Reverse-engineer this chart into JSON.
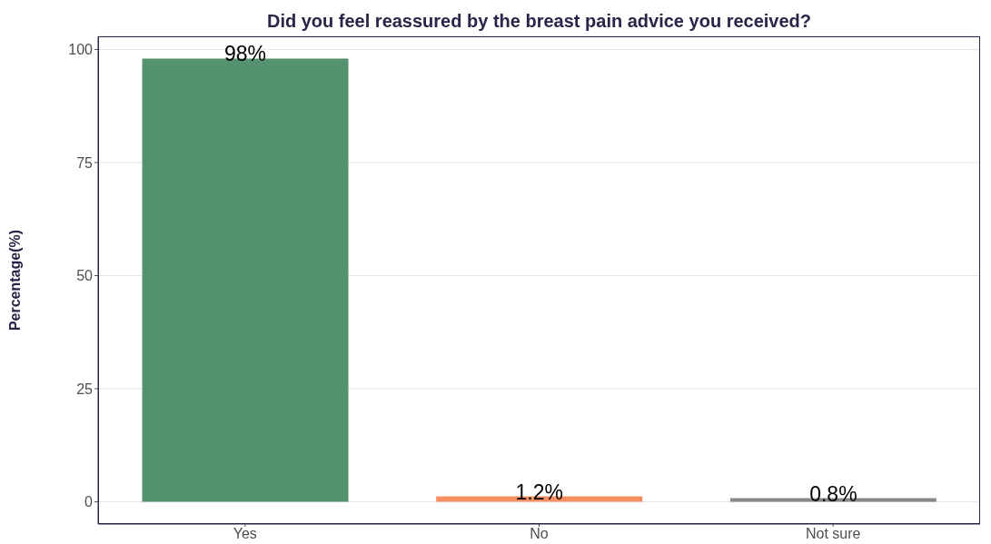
{
  "chart_data": {
    "type": "bar",
    "title": "Did you feel reassured by the breast pain advice you received?",
    "ylabel": "Percentage(%)",
    "categories": [
      "Yes",
      "No",
      "Not sure"
    ],
    "values": [
      98,
      1.2,
      0.8
    ],
    "colors": [
      "#559370",
      "#f4905f",
      "#888888"
    ],
    "value_labels": [
      "98%",
      "1.2%",
      "0.8%"
    ],
    "ylim": [
      -4.9,
      102.9
    ],
    "yticks": [
      0,
      25,
      50,
      75,
      100
    ],
    "grid": "y"
  }
}
